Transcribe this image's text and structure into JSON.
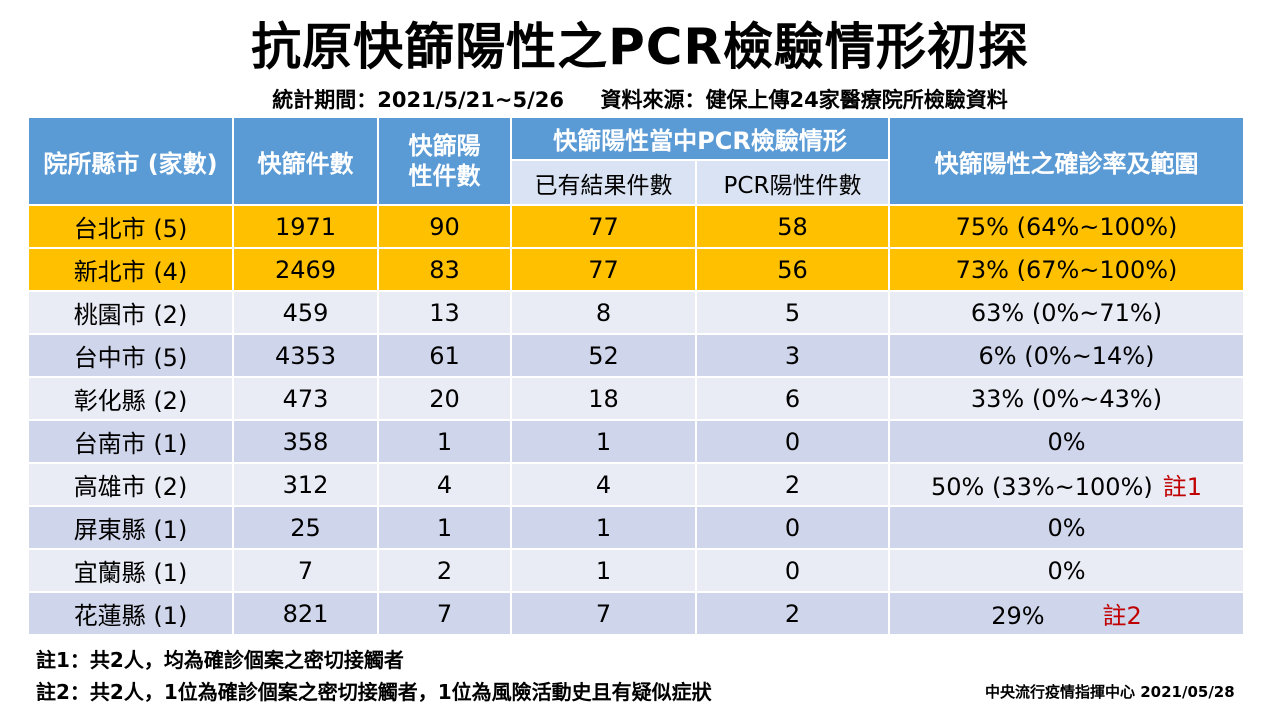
{
  "title": "抗原快篩陽性之PCR檢驗情形初探",
  "subtitle": "統計期間：2021/5/21~5/26     資料來源：健保上傳24家醫療院所檢驗資料",
  "headers": {
    "county": "院所縣市 (家數)",
    "tests": "快篩件數",
    "positive": "快篩陽性件數",
    "pcr_group": "快篩陽性當中PCR檢驗情形",
    "results": "已有結果件數",
    "pcr_pos": "PCR陽性件數",
    "rate": "快篩陽性之確診率及範圍"
  },
  "rows": [
    {
      "county": "台北市 (5)",
      "tests": "1971",
      "positive": "90",
      "results": "77",
      "pcr_pos": "58",
      "rate": "75% (64%~100%)",
      "note": ""
    },
    {
      "county": "新北市 (4)",
      "tests": "2469",
      "positive": "83",
      "results": "77",
      "pcr_pos": "56",
      "rate": "73% (67%~100%)",
      "note": ""
    },
    {
      "county": "桃園市 (2)",
      "tests": "459",
      "positive": "13",
      "results": "8",
      "pcr_pos": "5",
      "rate": "63% (0%~71%)",
      "note": ""
    },
    {
      "county": "台中市 (5)",
      "tests": "4353",
      "positive": "61",
      "results": "52",
      "pcr_pos": "3",
      "rate": "6% (0%~14%)",
      "note": ""
    },
    {
      "county": "彰化縣 (2)",
      "tests": "473",
      "positive": "20",
      "results": "18",
      "pcr_pos": "6",
      "rate": "33% (0%~43%)",
      "note": ""
    },
    {
      "county": "台南市 (1)",
      "tests": "358",
      "positive": "1",
      "results": "1",
      "pcr_pos": "0",
      "rate": "0%",
      "note": ""
    },
    {
      "county": "高雄市 (2)",
      "tests": "312",
      "positive": "4",
      "results": "4",
      "pcr_pos": "2",
      "rate": "50% (33%~100%)",
      "note": "註1"
    },
    {
      "county": "屏東縣 (1)",
      "tests": "25",
      "positive": "1",
      "results": "1",
      "pcr_pos": "0",
      "rate": "0%",
      "note": ""
    },
    {
      "county": "宜蘭縣 (1)",
      "tests": "7",
      "positive": "2",
      "results": "1",
      "pcr_pos": "0",
      "rate": "0%",
      "note": ""
    },
    {
      "county": "花蓮縣 (1)",
      "tests": "821",
      "positive": "7",
      "results": "7",
      "pcr_pos": "2",
      "rate": "29%",
      "note": "註2"
    }
  ],
  "notes": [
    "註1：共2人，均為確診個案之密切接觸者",
    "註2：共2人，1位為確診個案之密切接觸者，1位為風險活動史且有疑似症狀"
  ],
  "credit": "中央流行疫情指揮中心  2021/05/28"
}
